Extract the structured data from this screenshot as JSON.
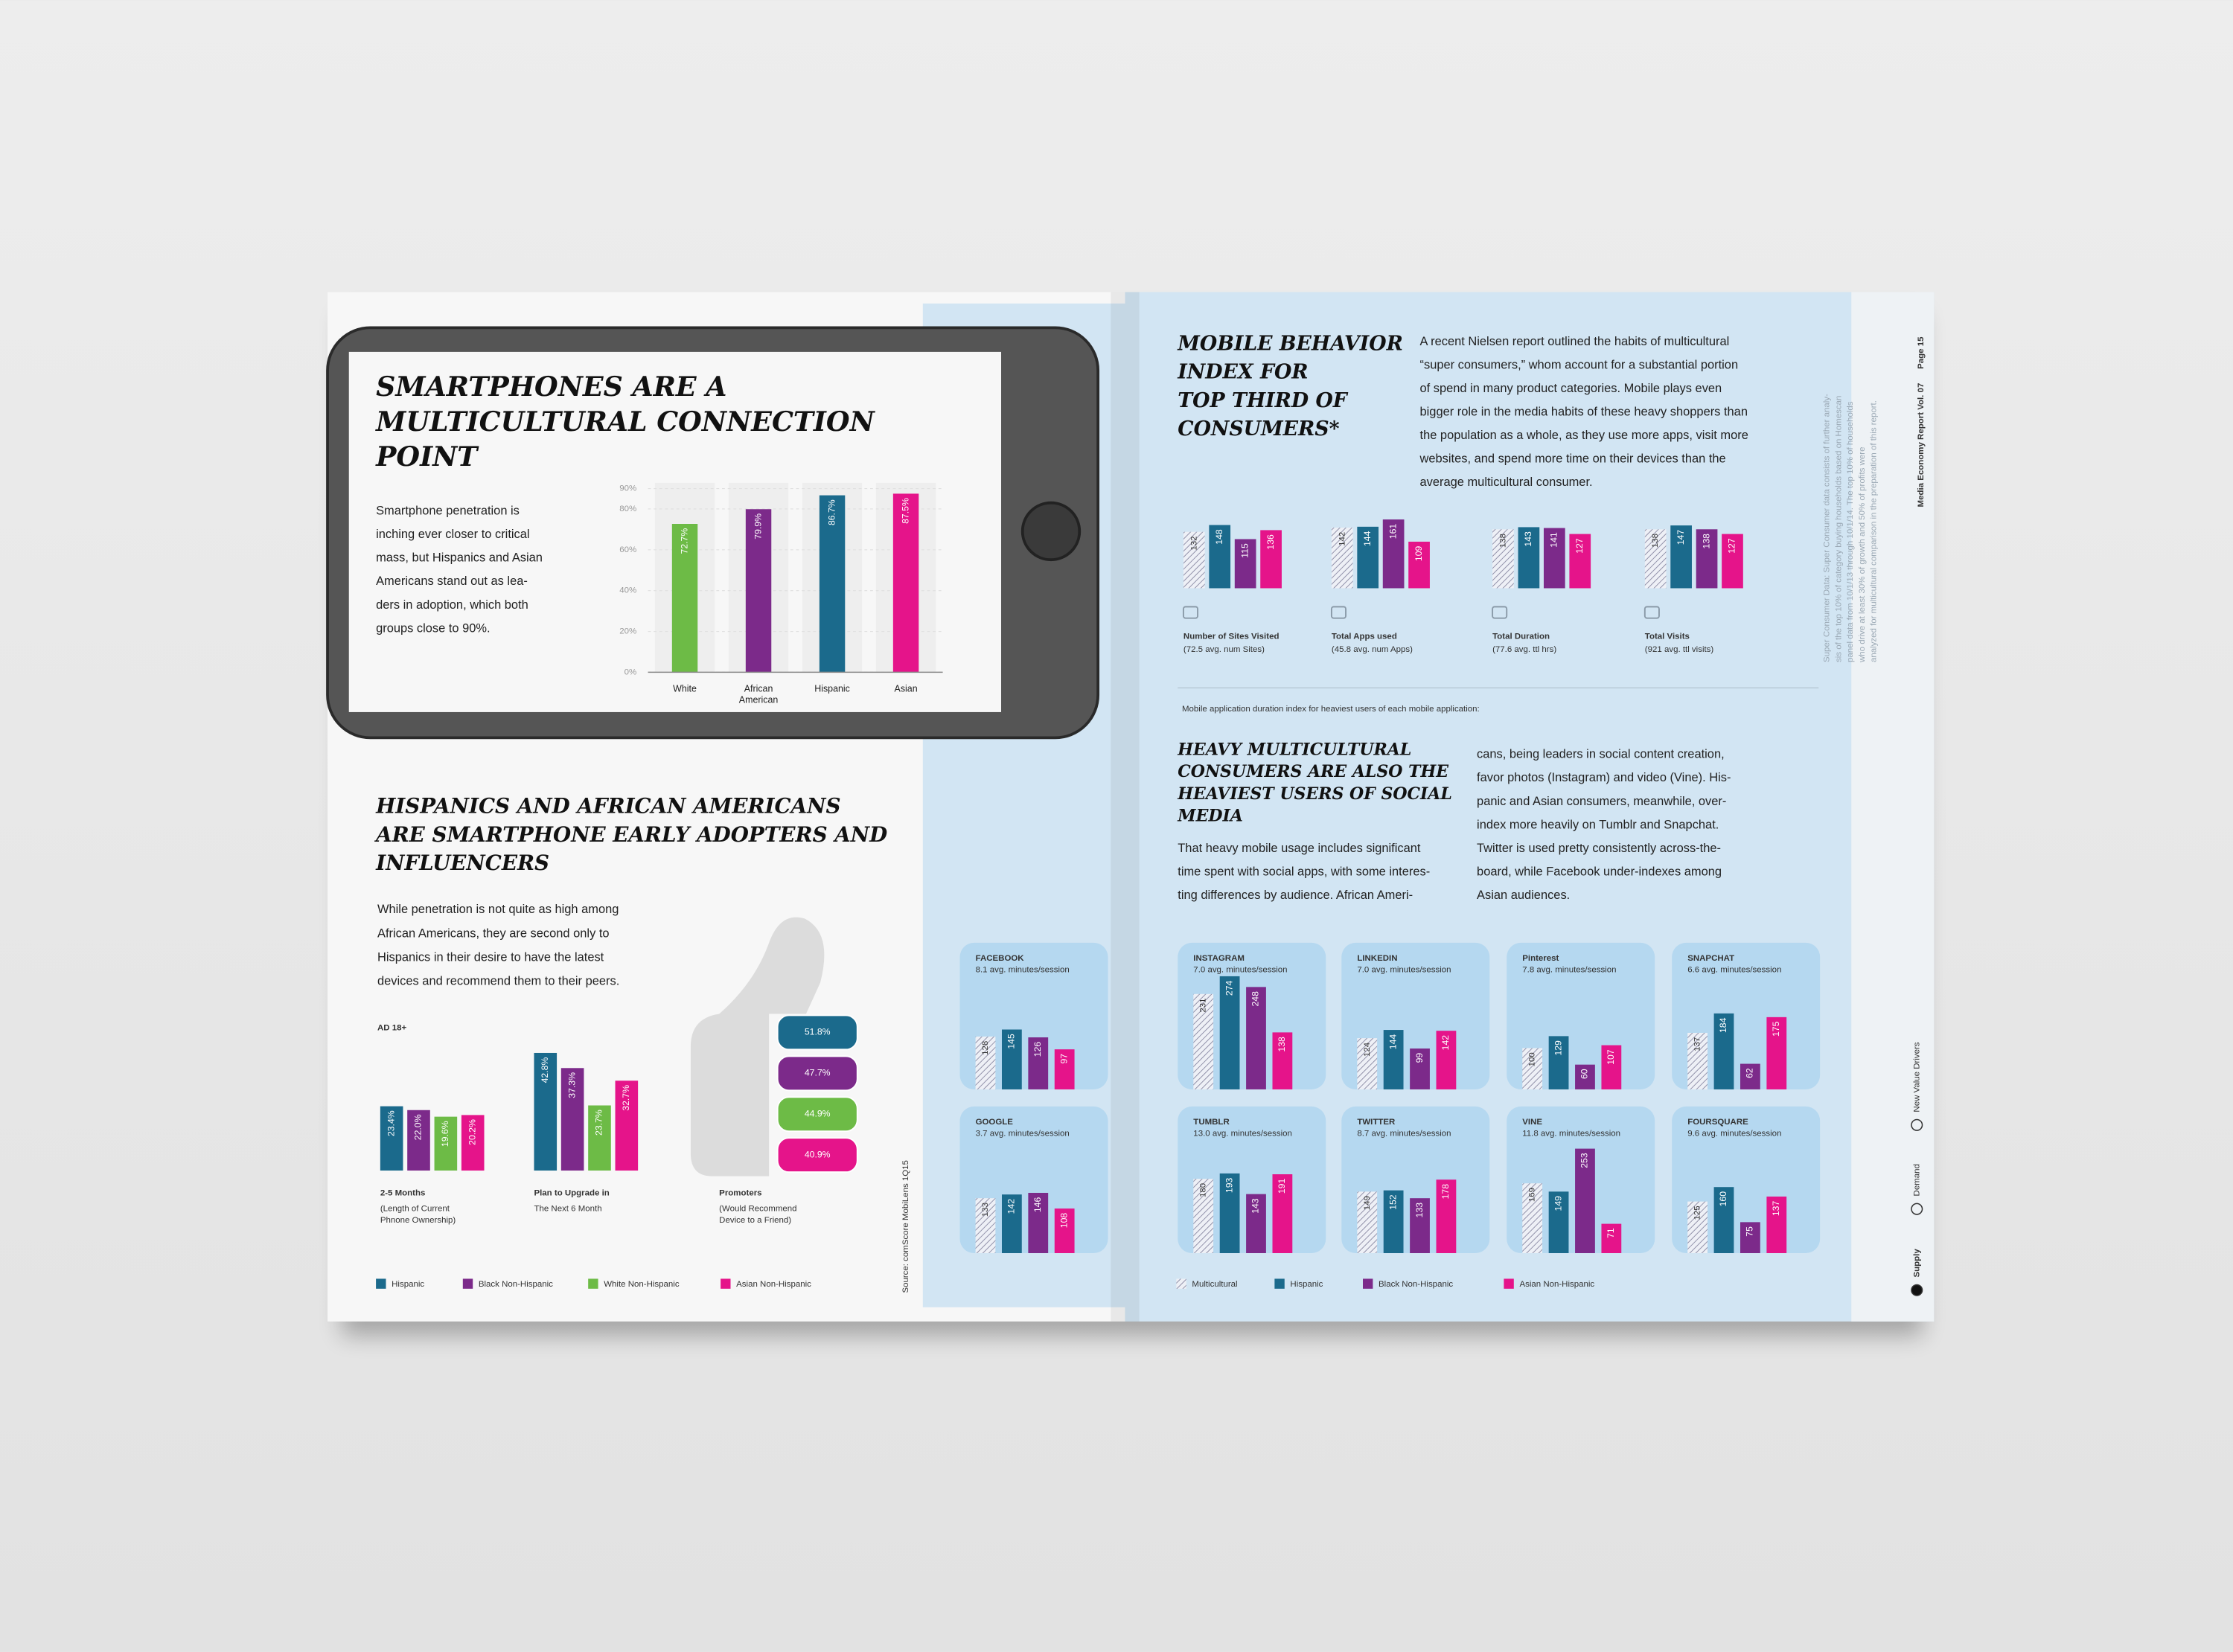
{
  "left_page": {
    "title_lines": [
      "SMARTPHONES ARE A",
      "MULTICULTURAL CONNECTION",
      "POINT"
    ],
    "intro_lines": [
      "Smartphone penetration is",
      "inching ever closer to critical",
      "mass, but Hispanics and Asian",
      "Americans stand out as lea-",
      "ders in adoption, which both",
      "groups close to 90%."
    ],
    "penetration_chart": {
      "type": "bar",
      "categories": [
        "White",
        "African American",
        "Hispanic",
        "Asian"
      ],
      "values": [
        72.7,
        79.9,
        86.7,
        87.5
      ],
      "value_labels": [
        "72.7%",
        "79.9%",
        "86.7%",
        "87.5%"
      ],
      "colors": [
        "#6dbb46",
        "#7c2a8a",
        "#1b6a8c",
        "#e5148a"
      ],
      "ylim": [
        0,
        90
      ],
      "yticks": [
        {
          "value": 0,
          "label": "0%"
        },
        {
          "value": 20,
          "label": "20%"
        },
        {
          "value": 40,
          "label": "40%"
        },
        {
          "value": 60,
          "label": "60%"
        },
        {
          "value": 80,
          "label": "80%"
        },
        {
          "value": 90,
          "label": "90%"
        }
      ],
      "grid": true
    },
    "section_title_lines": [
      "HISPANICS AND AFRICAN AMERICANS",
      "ARE SMARTPHONE EARLY ADOPTERS AND",
      "INFLUENCERS"
    ],
    "section_lines": [
      "While penetration is not quite as high among",
      "African Americans, they are second only to",
      "Hispanics in their desire to have the latest",
      "devices and recommend them to their peers."
    ],
    "audience": "AD 18+",
    "legend": [
      {
        "name": "Hispanic",
        "color": "#1b6a8c"
      },
      {
        "name": "Black Non-Hispanic",
        "color": "#7c2a8a"
      },
      {
        "name": "White Non-Hispanic",
        "color": "#6dbb46"
      },
      {
        "name": "Asian Non-Hispanic",
        "color": "#e5148a"
      }
    ],
    "adoption_chart": {
      "type": "grouped_bar",
      "groups": [
        {
          "label": "2-5 Months",
          "sublabel_lines": [
            "(Length of Current",
            "Phnone Ownership)"
          ],
          "style": "bars",
          "values": [
            23.4,
            22.0,
            19.6,
            20.2
          ],
          "value_labels": [
            "23.4%",
            "22.0%",
            "19.6%",
            "20.2%"
          ]
        },
        {
          "label": "Plan to Upgrade in",
          "sublabel_lines": [
            "The Next 6 Month"
          ],
          "style": "bars",
          "values": [
            42.8,
            37.3,
            23.7,
            32.7
          ],
          "value_labels": [
            "42.8%",
            "37.3%",
            "23.7%",
            "32.7%"
          ]
        },
        {
          "label": "Promoters",
          "sublabel_lines": [
            "(Would Recommend",
            "Device to a Friend)"
          ],
          "style": "thumb",
          "values": [
            51.8,
            47.7,
            44.9,
            40.9
          ],
          "value_labels": [
            "51.8%",
            "47.7%",
            "44.9%",
            "40.9%"
          ]
        }
      ]
    },
    "source": "Source: comScore MobiLens 1Q15"
  },
  "right_page": {
    "title_lines": [
      "MOBILE BEHAVIOR",
      "INDEX FOR",
      "TOP THIRD OF",
      "CONSUMERS*"
    ],
    "intro_lines": [
      "A recent Nielsen report outlined the habits of multicultural",
      "“super consumers,” whom account for a substantial portion",
      "of spend in many product categories. Mobile plays even",
      "bigger role in the media habits of these heavy shoppers than",
      "the population as a whole, as they use more apps, visit more",
      "websites, and spend more time on their devices than the",
      "average multicultural consumer."
    ],
    "legend": [
      {
        "name": "Multicultural",
        "color": "#8f8fa8",
        "hatched": true
      },
      {
        "name": "Hispanic",
        "color": "#1b6a8c"
      },
      {
        "name": "Black Non-Hispanic",
        "color": "#7c2a8a"
      },
      {
        "name": "Asian Non-Hispanic",
        "color": "#e5148a"
      }
    ],
    "index_chart": {
      "type": "grouped_bar",
      "groups": [
        {
          "label": "Number of Sites Visited",
          "sublabel": "(72.5 avg. num Sites)",
          "values": [
            132,
            148,
            115,
            136
          ]
        },
        {
          "label": "Total Apps used",
          "sublabel": "(45.8 avg. num Apps)",
          "values": [
            142,
            144,
            161,
            109
          ]
        },
        {
          "label": "Total Duration",
          "sublabel": "(77.6 avg. ttl hrs)",
          "values": [
            138,
            143,
            141,
            127
          ]
        },
        {
          "label": "Total Visits",
          "sublabel": "(921 avg. ttl visits)",
          "values": [
            138,
            147,
            138,
            127
          ]
        }
      ]
    },
    "note_lines": [
      "Super Consumer Data: Super Consumer data consists of further analy-",
      "sis of the top 10% of category buying households based on Homescan",
      "panel data from 10/1/13 through 10/1/14. The top 10% of households",
      "who drive at least 30% of growth and 50% of profits were",
      "analyzed for multicultural comparison in the preparation of this report."
    ],
    "report_name": "Media Economy Report Vol. 07",
    "page": "Page 15",
    "nav": [
      "Supply",
      "Demand",
      "New Value Drivers"
    ],
    "app_caption": "Mobile application duration index for heaviest users of each mobile application:",
    "social_title_lines": [
      "HEAVY MULTICULTURAL",
      "CONSUMERS ARE ALSO THE",
      "HEAVIEST USERS OF SOCIAL",
      "MEDIA"
    ],
    "social_col1_lines": [
      "That heavy mobile usage includes significant",
      "time spent with social apps, with some interes-",
      "ting differences by audience. African Ameri-"
    ],
    "social_col2_lines": [
      "cans, being leaders in social content creation,",
      "favor photos (Instagram) and video (Vine). His-",
      "panic and Asian consumers, meanwhile, over-",
      "index more heavily on Tumblr and Snapchat.",
      "Twitter is used pretty consistently across-the-",
      "board, while Facebook under-indexes among",
      "Asian audiences."
    ],
    "app_chart": {
      "type": "small_multiples",
      "apps": [
        {
          "name": "FACEBOOK",
          "subtitle": "8.1 avg. minutes/session",
          "values": [
            128,
            145,
            126,
            97
          ]
        },
        {
          "name": "GOOGLE",
          "subtitle": "3.7 avg. minutes/session",
          "values": [
            133,
            142,
            146,
            108
          ]
        },
        {
          "name": "INSTAGRAM",
          "subtitle": "7.0 avg. minutes/session",
          "values": [
            231,
            274,
            248,
            138
          ]
        },
        {
          "name": "LINKEDIN",
          "subtitle": "7.0 avg. minutes/session",
          "values": [
            124,
            144,
            99,
            142
          ]
        },
        {
          "name": "Pinterest",
          "subtitle": "7.8 avg. minutes/session",
          "values": [
            100,
            129,
            60,
            107
          ]
        },
        {
          "name": "SNAPCHAT",
          "subtitle": "6.6 avg. minutes/session",
          "values": [
            137,
            184,
            62,
            175
          ]
        },
        {
          "name": "TUMBLR",
          "subtitle": "13.0 avg. minutes/session",
          "values": [
            180,
            193,
            143,
            191
          ]
        },
        {
          "name": "TWITTER",
          "subtitle": "8.7 avg. minutes/session",
          "values": [
            149,
            152,
            133,
            178
          ]
        },
        {
          "name": "VINE",
          "subtitle": "11.8 avg. minutes/session",
          "values": [
            169,
            149,
            253,
            71
          ]
        },
        {
          "name": "FOURSQUARE",
          "subtitle": "9.6 avg. minutes/session",
          "values": [
            125,
            160,
            75,
            137
          ]
        }
      ]
    }
  }
}
